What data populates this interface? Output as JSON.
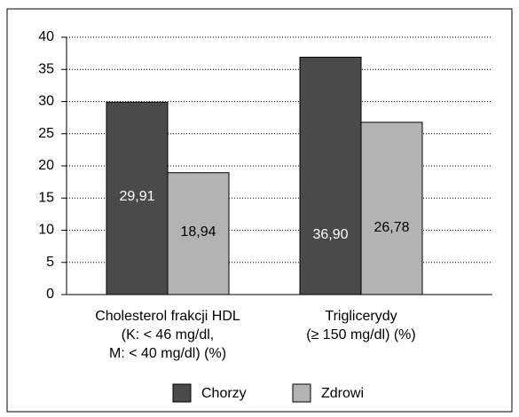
{
  "chart_data": {
    "type": "bar",
    "categories": [
      "Cholesterol frakcji HDL\n(K: < 46 mg/dl,\nM: < 40 mg/dl) (%)",
      "Triglicerydy\n(≥ 150 mg/dl) (%)"
    ],
    "series": [
      {
        "name": "Chorzy",
        "color": "#4a4a4a",
        "values": [
          29.91,
          36.9
        ],
        "value_labels": [
          "29,91",
          "36,90"
        ]
      },
      {
        "name": "Zdrowi",
        "color": "#b3b3b3",
        "values": [
          18.94,
          26.78
        ],
        "value_labels": [
          "18,94",
          "26,78"
        ]
      }
    ],
    "ylim": [
      0,
      40
    ],
    "yticks": [
      0,
      5,
      10,
      15,
      20,
      25,
      30,
      35,
      40
    ],
    "grid": true,
    "legend": "bottom"
  }
}
